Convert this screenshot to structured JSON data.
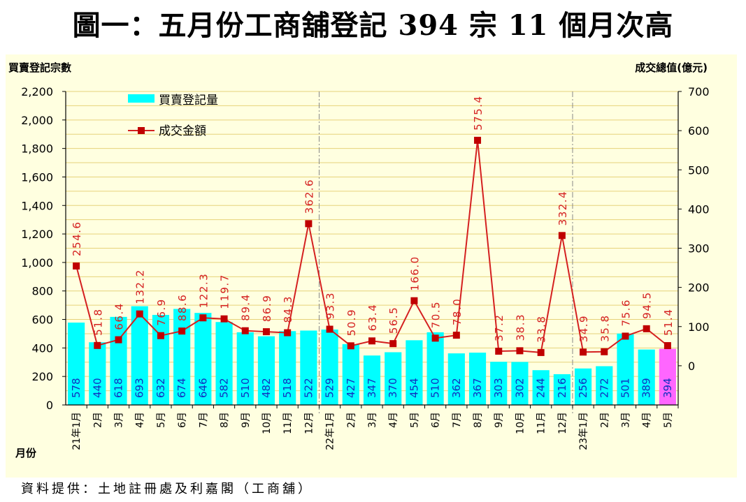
{
  "title": "圖一：五月份工商舖登記 394 宗  11 個月次高",
  "source": "資料提供：土地註冊處及利嘉閣（工商舖）",
  "colors": {
    "bar": "#00FFFF",
    "bar_highlight": "#FF66FF",
    "line": "#D42020",
    "bg": "#FFFFE0",
    "grid": "#E6D27A"
  },
  "chart_data": {
    "type": "bar",
    "ylabel": "買賣登記宗數",
    "y2label": "成交總值(億元)",
    "xlabel": "月份",
    "ylim": [
      0,
      2200
    ],
    "y2lim": [
      -100,
      700
    ],
    "yticks": [
      "0",
      "200",
      "400",
      "600",
      "800",
      "1,000",
      "1,200",
      "1,400",
      "1,600",
      "1,800",
      "2,000",
      "2,200"
    ],
    "y2ticks": [
      "0",
      "100",
      "200",
      "300",
      "400",
      "500",
      "600",
      "700"
    ],
    "categories": [
      "21年1月",
      "2月",
      "3月",
      "4月",
      "5月",
      "6月",
      "7月",
      "8月",
      "9月",
      "10月",
      "11月",
      "12月",
      "22年1月",
      "2月",
      "3月",
      "4月",
      "5月",
      "6月",
      "7月",
      "8月",
      "9月",
      "10月",
      "11月",
      "12月",
      "23年1月",
      "2月",
      "3月",
      "4月",
      "5月"
    ],
    "series": [
      {
        "name": "買賣登記量",
        "type": "bar",
        "axis": "left",
        "values": [
          578,
          440,
          618,
          693,
          632,
          674,
          646,
          582,
          510,
          482,
          518,
          522,
          529,
          427,
          347,
          370,
          454,
          510,
          362,
          367,
          303,
          302,
          244,
          216,
          256,
          272,
          501,
          389,
          394
        ],
        "labels": [
          "578",
          "440",
          "618",
          "693",
          "632",
          "674",
          "646",
          "582",
          "510",
          "482",
          "518",
          "522",
          "529",
          "427",
          "347",
          "370",
          "454",
          "510",
          "362",
          "367",
          "303",
          "302",
          "244",
          "216",
          "256",
          "272",
          "501",
          "389",
          "394"
        ]
      },
      {
        "name": "成交金額",
        "type": "line",
        "axis": "right",
        "values": [
          254.6,
          51.8,
          66.4,
          132.2,
          76.9,
          88.6,
          122.3,
          119.7,
          89.4,
          86.9,
          84.3,
          362.6,
          93.3,
          50.9,
          63.4,
          56.5,
          166.0,
          70.5,
          78.0,
          575.4,
          37.2,
          38.3,
          33.8,
          332.4,
          34.9,
          35.8,
          75.6,
          94.5,
          51.4
        ],
        "labels": [
          "254.6",
          "51.8",
          "66.4",
          "132.2",
          "76.9",
          "88.6",
          "122.3",
          "119.7",
          "89.4",
          "86.9",
          "84.3",
          "362.6",
          "93.3",
          "50.9",
          "63.4",
          "56.5",
          "166.0",
          "70.5",
          "78.0",
          "575.4",
          "37.2",
          "38.3",
          "33.8",
          "332.4",
          "34.9",
          "35.8",
          "75.6",
          "94.5",
          "51.4"
        ]
      }
    ],
    "legend": [
      "買賣登記量",
      "成交金額"
    ],
    "legend_position": "top-left",
    "year_separators_after": [
      11,
      23
    ]
  }
}
